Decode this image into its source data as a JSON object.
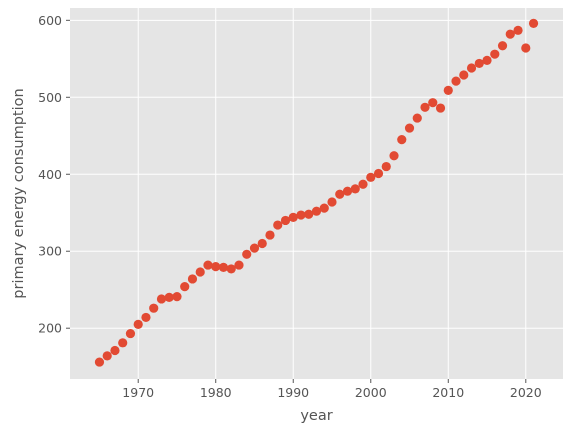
{
  "chart_data": {
    "type": "scatter",
    "title": "",
    "xlabel": "year",
    "ylabel": "primary energy consumption",
    "xlim": [
      1961.2,
      2024.8
    ],
    "ylim": [
      134,
      616
    ],
    "xticks": [
      1970,
      1980,
      1990,
      2000,
      2010,
      2020
    ],
    "yticks": [
      200,
      300,
      400,
      500,
      600
    ],
    "grid": true,
    "style": {
      "background": "#E5E5E5",
      "grid_color": "#FFFFFF",
      "marker_color": "#E24A33"
    },
    "series": [
      {
        "x": [
          1965,
          1966,
          1967,
          1968,
          1969,
          1970,
          1971,
          1972,
          1973,
          1974,
          1975,
          1976,
          1977,
          1978,
          1979,
          1980,
          1981,
          1982,
          1983,
          1984,
          1985,
          1986,
          1987,
          1988,
          1989,
          1990,
          1991,
          1992,
          1993,
          1994,
          1995,
          1996,
          1997,
          1998,
          1999,
          2000,
          2001,
          2002,
          2003,
          2004,
          2005,
          2006,
          2007,
          2008,
          2009,
          2010,
          2011,
          2012,
          2013,
          2014,
          2015,
          2016,
          2017,
          2018,
          2019,
          2020,
          2021
        ],
        "y": [
          156,
          164,
          171,
          181,
          193,
          205,
          214,
          226,
          238,
          240,
          241,
          254,
          264,
          273,
          282,
          280,
          279,
          277,
          282,
          296,
          304,
          310,
          321,
          334,
          340,
          344,
          347,
          348,
          352,
          356,
          364,
          374,
          378,
          381,
          387,
          396,
          401,
          410,
          424,
          445,
          460,
          473,
          487,
          493,
          486,
          509,
          521,
          529,
          538,
          544,
          548,
          556,
          567,
          582,
          587,
          564,
          596
        ]
      }
    ]
  }
}
